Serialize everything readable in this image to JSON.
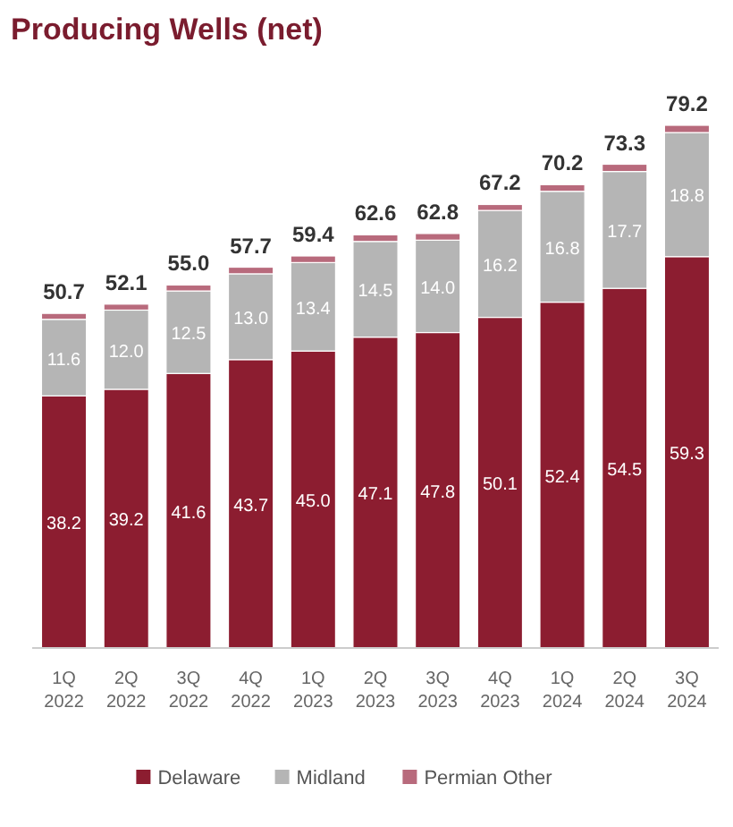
{
  "chart_data": {
    "type": "bar",
    "title": "Producing Wells (net)",
    "stacked": true,
    "legend": "bottom",
    "categories": [
      "1Q 2022",
      "2Q 2022",
      "3Q 2022",
      "4Q 2022",
      "1Q 2023",
      "2Q 2023",
      "3Q 2023",
      "4Q 2023",
      "1Q 2024",
      "2Q 2024",
      "3Q 2024"
    ],
    "series": [
      {
        "name": "Delaware",
        "color": "#8c1d30",
        "values": [
          38.2,
          39.2,
          41.6,
          43.7,
          45.0,
          47.1,
          47.8,
          50.1,
          52.4,
          54.5,
          59.3
        ],
        "value_labels": [
          "38.2",
          "39.2",
          "41.6",
          "43.7",
          "45.0",
          "47.1",
          "47.8",
          "50.1",
          "52.4",
          "54.5",
          "59.3"
        ]
      },
      {
        "name": "Midland",
        "color": "#b5b5b5",
        "values": [
          11.6,
          12.0,
          12.5,
          13.0,
          13.4,
          14.5,
          14.0,
          16.2,
          16.8,
          17.7,
          18.8
        ],
        "value_labels": [
          "11.6",
          "12.0",
          "12.5",
          "13.0",
          "13.4",
          "14.5",
          "14.0",
          "16.2",
          "16.8",
          "17.7",
          "18.8"
        ]
      },
      {
        "name": "Permian Other",
        "color": "#b86a7c",
        "values": [
          0.9,
          0.9,
          0.9,
          1.0,
          1.0,
          1.0,
          1.0,
          0.9,
          1.0,
          1.1,
          1.1
        ]
      }
    ],
    "totals": [
      "50.7",
      "52.1",
      "55.0",
      "57.7",
      "59.4",
      "62.6",
      "62.8",
      "67.2",
      "70.2",
      "73.3",
      "79.2"
    ]
  }
}
